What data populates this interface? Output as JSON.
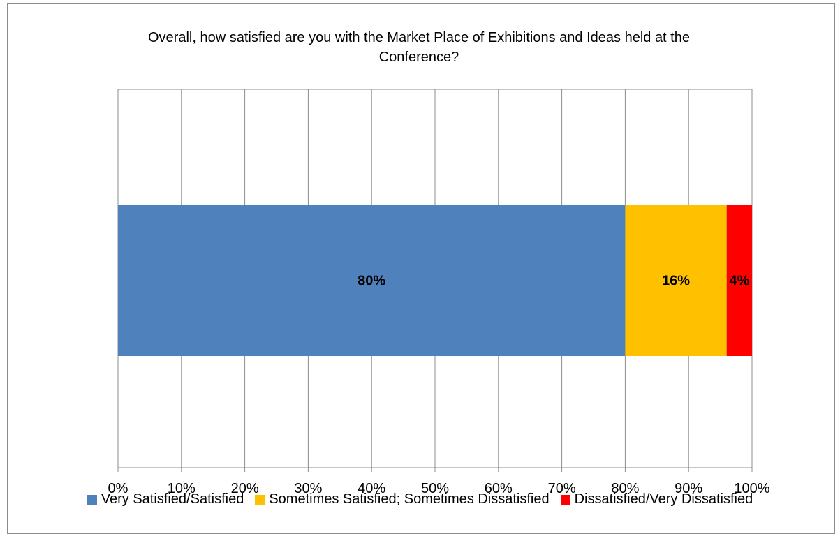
{
  "chart_data": {
    "type": "bar",
    "orientation": "horizontal",
    "stacked": true,
    "title": "Overall, how satisfied are you with the Market Place of Exhibitions and Ideas held at the Conference?",
    "xlabel": "",
    "ylabel": "",
    "xlim": [
      0,
      100
    ],
    "x_ticks": [
      "0%",
      "10%",
      "20%",
      "30%",
      "40%",
      "50%",
      "60%",
      "70%",
      "80%",
      "90%",
      "100%"
    ],
    "grid": true,
    "legend_position": "bottom",
    "series": [
      {
        "name": "Very Satisfied/Satisfied",
        "value": 80,
        "label": "80%",
        "color": "#4f81bd"
      },
      {
        "name": "Sometimes Satisfied; Sometimes Dissatisfied",
        "value": 16,
        "label": "16%",
        "color": "#ffc000"
      },
      {
        "name": "Dissatisfied/Very Dissatisfied",
        "value": 4,
        "label": "4%",
        "color": "#ff0000"
      }
    ]
  }
}
